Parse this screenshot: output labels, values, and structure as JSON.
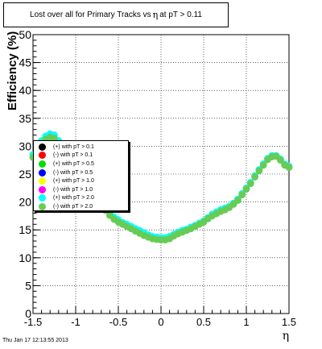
{
  "title": {
    "prefix": "Lost over all for Primary Tracks vs",
    "symbol": "η",
    "suffix": "at pT > 0.11"
  },
  "timestamp": "Thu Jan 17 12:13:55 2013",
  "chart_data": {
    "type": "scatter",
    "title": "Lost over all for Primary Tracks vs η at pT > 0.11",
    "xlabel": "η",
    "ylabel": "Efficiency (%)",
    "xlim": [
      -1.5,
      1.5
    ],
    "ylim": [
      0,
      50
    ],
    "grid": true,
    "legend_position": "left-middle",
    "x_ticks": [
      "-1.5",
      "-1",
      "-0.5",
      "0",
      "0.5",
      "1",
      "1.5"
    ],
    "y_ticks": [
      "0",
      "5",
      "10",
      "15",
      "20",
      "25",
      "30",
      "35",
      "40",
      "45",
      "50"
    ],
    "legend": [
      {
        "label": "(+) with pT > 0.1",
        "color": "#000000"
      },
      {
        "label": "(-) with pT > 0.1",
        "color": "#ff0000"
      },
      {
        "label": "(+) with pT > 0.5",
        "color": "#00dd00"
      },
      {
        "label": "(-) with pT > 0.5",
        "color": "#0000ff"
      },
      {
        "label": "(+) with pT > 1.0",
        "color": "#ffff00"
      },
      {
        "label": "(-) with pT > 1.0",
        "color": "#ff00ff"
      },
      {
        "label": "(+) with pT > 2.0",
        "color": "#00ffff"
      },
      {
        "label": "(-) with pT > 2.0",
        "color": "#66cc55"
      }
    ],
    "series": [
      {
        "color": "#00ffff",
        "x": [
          -1.5,
          -1.45,
          -1.4,
          -1.35,
          -1.3,
          -1.25,
          -1.2,
          -1.15,
          -1.1,
          -1.05,
          -1.0,
          -0.95,
          -0.9,
          -0.85,
          -0.8,
          -0.75,
          -0.7,
          -0.65,
          -0.6,
          -0.55,
          -0.5,
          -0.45,
          -0.4,
          -0.35,
          -0.3,
          -0.25,
          -0.2,
          -0.15,
          -0.1,
          -0.05,
          0.0,
          0.05,
          0.1,
          0.15,
          0.2,
          0.25,
          0.3,
          0.35,
          0.4,
          0.45,
          0.5,
          0.55,
          0.6,
          0.65,
          0.7,
          0.75,
          0.8,
          0.85,
          0.9,
          0.95,
          1.0,
          1.05,
          1.1,
          1.15,
          1.2,
          1.25,
          1.3,
          1.35,
          1.4,
          1.45,
          1.5
        ],
        "y": [
          28.5,
          30.0,
          31.0,
          31.8,
          32.2,
          32.0,
          31.0,
          30.0,
          29.0,
          27.5,
          26.0,
          25.0,
          24.0,
          23.0,
          22.0,
          21.0,
          20.0,
          19.0,
          18.0,
          17.3,
          16.8,
          16.3,
          16.0,
          15.6,
          15.2,
          14.9,
          14.5,
          14.1,
          13.8,
          13.7,
          13.6,
          13.6,
          13.8,
          14.2,
          14.6,
          14.9,
          15.1,
          15.5,
          15.8,
          16.2,
          16.6,
          17.2,
          17.8,
          18.2,
          18.6,
          18.9,
          19.2,
          19.8,
          20.5,
          21.5,
          22.5,
          23.5,
          24.7,
          25.8,
          26.8,
          27.8,
          28.3,
          28.3,
          27.7,
          26.8,
          26.4
        ]
      },
      {
        "color": "#66cc55",
        "x": [
          -1.5,
          -1.45,
          -1.4,
          -1.35,
          -1.3,
          -1.25,
          -1.2,
          -1.15,
          -1.1,
          -1.05,
          -1.0,
          -0.95,
          -0.9,
          -0.85,
          -0.8,
          -0.75,
          -0.7,
          -0.65,
          -0.6,
          -0.55,
          -0.5,
          -0.45,
          -0.4,
          -0.35,
          -0.3,
          -0.25,
          -0.2,
          -0.15,
          -0.1,
          -0.05,
          0.0,
          0.05,
          0.1,
          0.15,
          0.2,
          0.25,
          0.3,
          0.35,
          0.4,
          0.45,
          0.5,
          0.55,
          0.6,
          0.65,
          0.7,
          0.75,
          0.8,
          0.85,
          0.9,
          0.95,
          1.0,
          1.05,
          1.1,
          1.15,
          1.2,
          1.25,
          1.3,
          1.35,
          1.4,
          1.45,
          1.5
        ],
        "y": [
          28.0,
          29.5,
          30.5,
          31.2,
          31.6,
          31.4,
          30.5,
          29.5,
          28.5,
          27.2,
          25.8,
          24.6,
          23.5,
          22.5,
          21.5,
          20.5,
          19.5,
          18.5,
          17.6,
          16.9,
          16.4,
          16.0,
          15.6,
          15.2,
          14.8,
          14.4,
          14.0,
          13.7,
          13.4,
          13.3,
          13.2,
          13.2,
          13.4,
          13.9,
          14.3,
          14.6,
          14.9,
          15.2,
          15.6,
          16.0,
          16.4,
          17.0,
          17.5,
          17.9,
          18.3,
          18.6,
          19.0,
          19.6,
          20.3,
          21.3,
          22.3,
          23.3,
          24.5,
          25.6,
          26.6,
          27.6,
          28.1,
          28.2,
          27.5,
          26.6,
          26.2
        ]
      }
    ]
  }
}
